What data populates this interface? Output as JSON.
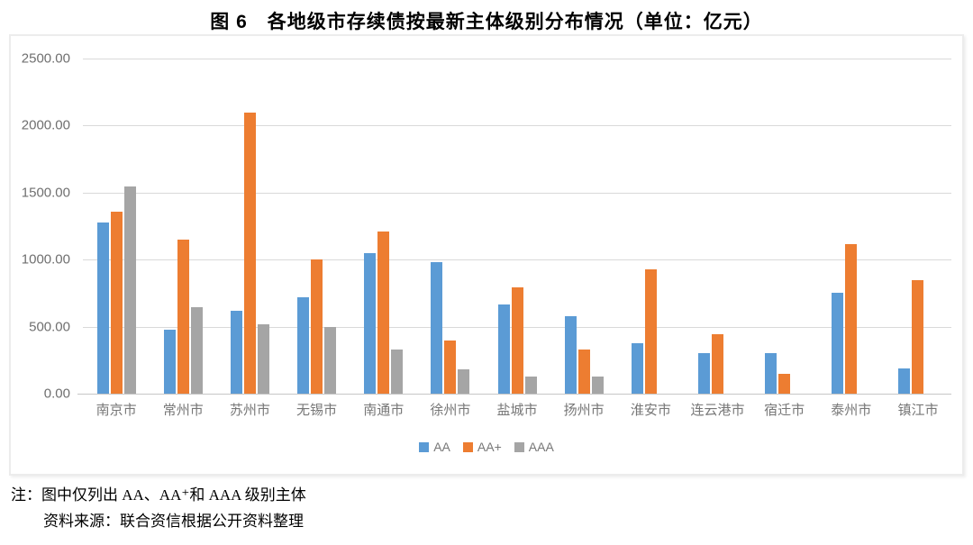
{
  "page": {
    "title": "图 6　各地级市存续债按最新主体级别分布情况（单位：亿元）"
  },
  "chart_data": {
    "type": "bar",
    "title": "各地级市存续债按最新主体级别分布情况",
    "unit": "亿元",
    "categories": [
      "南京市",
      "常州市",
      "苏州市",
      "无锡市",
      "南通市",
      "徐州市",
      "盐城市",
      "扬州市",
      "淮安市",
      "连云港市",
      "宿迁市",
      "泰州市",
      "镇江市"
    ],
    "series": [
      {
        "name": "AA",
        "color": "#5B9BD5",
        "values": [
          1280,
          480,
          620,
          720,
          1050,
          980,
          665,
          575,
          375,
          305,
          305,
          755,
          185
        ]
      },
      {
        "name": "AA+",
        "color": "#ED7D31",
        "values": [
          1360,
          1150,
          2100,
          1000,
          1210,
          395,
          790,
          330,
          925,
          445,
          145,
          1115,
          845
        ]
      },
      {
        "name": "AAA",
        "color": "#A5A5A5",
        "values": [
          1545,
          645,
          520,
          500,
          330,
          180,
          130,
          125,
          0,
          0,
          0,
          0,
          0
        ]
      }
    ],
    "ylim": [
      0,
      2500
    ],
    "yticks": [
      {
        "value": 0,
        "label": "0.00"
      },
      {
        "value": 500,
        "label": "500.00"
      },
      {
        "value": 1000,
        "label": "1000.00"
      },
      {
        "value": 1500,
        "label": "1500.00"
      },
      {
        "value": 2000,
        "label": "2000.00"
      },
      {
        "value": 2500,
        "label": "2500.00"
      }
    ],
    "grid": true,
    "legend_position": "bottom"
  },
  "notes": {
    "line1": "注：图中仅列出 AA、AA⁺和 AAA 级别主体",
    "line2": "资料来源：联合资信根据公开资料整理"
  },
  "colors": {
    "gridline": "#d9d9d9",
    "axis_text": "#6f6f6f",
    "frame_border": "#ececec"
  }
}
